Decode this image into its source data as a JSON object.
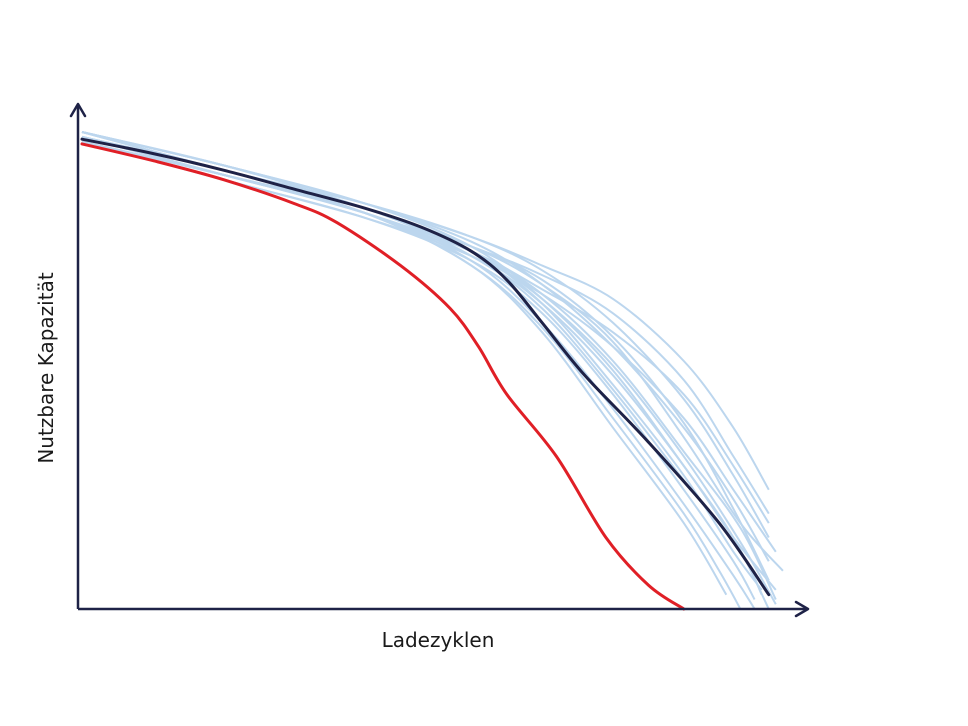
{
  "chart_data": {
    "type": "line",
    "title": "",
    "xlabel": "Ladezyklen",
    "ylabel": "Nutzbare Kapazität",
    "xlim": [
      0,
      100
    ],
    "ylim": [
      0,
      100
    ],
    "grid": false,
    "legend": "none",
    "colors": {
      "axis": "#1e2247",
      "background_series": "#bcd6ee",
      "mean_series": "#1e2247",
      "worst_series": "#e01f26"
    },
    "background_series": [
      [
        [
          0,
          100
        ],
        [
          20,
          93
        ],
        [
          40,
          85
        ],
        [
          55,
          76
        ],
        [
          65,
          65
        ],
        [
          75,
          50
        ],
        [
          85,
          30
        ],
        [
          92,
          15
        ],
        [
          97,
          0
        ]
      ],
      [
        [
          0,
          99
        ],
        [
          20,
          92
        ],
        [
          40,
          84
        ],
        [
          55,
          75
        ],
        [
          65,
          66
        ],
        [
          75,
          52
        ],
        [
          85,
          33
        ],
        [
          93,
          17
        ],
        [
          98,
          2
        ]
      ],
      [
        [
          0,
          99
        ],
        [
          20,
          92
        ],
        [
          40,
          83
        ],
        [
          55,
          72
        ],
        [
          65,
          58
        ],
        [
          75,
          38
        ],
        [
          85,
          18
        ],
        [
          91,
          3
        ]
      ],
      [
        [
          0,
          98
        ],
        [
          20,
          91
        ],
        [
          40,
          83
        ],
        [
          55,
          75
        ],
        [
          65,
          67
        ],
        [
          75,
          58
        ],
        [
          85,
          45
        ],
        [
          92,
          30
        ],
        [
          97,
          18
        ]
      ],
      [
        [
          0,
          99
        ],
        [
          20,
          92
        ],
        [
          40,
          84
        ],
        [
          55,
          76
        ],
        [
          65,
          70
        ],
        [
          75,
          62
        ],
        [
          85,
          48
        ],
        [
          92,
          32
        ],
        [
          97,
          20
        ]
      ],
      [
        [
          0,
          100
        ],
        [
          20,
          93
        ],
        [
          40,
          85
        ],
        [
          55,
          78
        ],
        [
          65,
          72
        ],
        [
          75,
          65
        ],
        [
          85,
          52
        ],
        [
          92,
          38
        ],
        [
          97,
          25
        ]
      ],
      [
        [
          0,
          98
        ],
        [
          20,
          90
        ],
        [
          40,
          82
        ],
        [
          55,
          73
        ],
        [
          65,
          62
        ],
        [
          75,
          45
        ],
        [
          85,
          25
        ],
        [
          92,
          10
        ],
        [
          95,
          2
        ]
      ],
      [
        [
          0,
          100
        ],
        [
          20,
          92
        ],
        [
          40,
          84
        ],
        [
          55,
          74
        ],
        [
          65,
          63
        ],
        [
          75,
          46
        ],
        [
          85,
          27
        ],
        [
          93,
          12
        ],
        [
          96,
          3
        ]
      ],
      [
        [
          0,
          99
        ],
        [
          20,
          91
        ],
        [
          40,
          83
        ],
        [
          55,
          73
        ],
        [
          65,
          60
        ],
        [
          75,
          42
        ],
        [
          85,
          22
        ],
        [
          92,
          7
        ],
        [
          95,
          0
        ]
      ],
      [
        [
          0,
          98
        ],
        [
          20,
          91
        ],
        [
          40,
          83
        ],
        [
          55,
          74
        ],
        [
          65,
          64
        ],
        [
          75,
          49
        ],
        [
          85,
          30
        ],
        [
          92,
          15
        ],
        [
          98,
          4
        ]
      ],
      [
        [
          0,
          100
        ],
        [
          20,
          93
        ],
        [
          40,
          85
        ],
        [
          55,
          77
        ],
        [
          65,
          68
        ],
        [
          75,
          55
        ],
        [
          85,
          38
        ],
        [
          92,
          23
        ],
        [
          97,
          10
        ]
      ],
      [
        [
          0,
          99
        ],
        [
          20,
          92
        ],
        [
          40,
          84
        ],
        [
          55,
          75
        ],
        [
          65,
          65
        ],
        [
          75,
          51
        ],
        [
          85,
          32
        ],
        [
          93,
          14
        ],
        [
          98,
          1
        ]
      ],
      [
        [
          0,
          98
        ],
        [
          20,
          90
        ],
        [
          40,
          82
        ],
        [
          55,
          74
        ],
        [
          65,
          66
        ],
        [
          75,
          55
        ],
        [
          85,
          40
        ],
        [
          92,
          25
        ],
        [
          98,
          12
        ]
      ],
      [
        [
          0,
          99
        ],
        [
          20,
          92
        ],
        [
          40,
          84
        ],
        [
          55,
          76
        ],
        [
          65,
          69
        ],
        [
          75,
          57
        ],
        [
          85,
          39
        ],
        [
          92,
          21
        ],
        [
          97,
          6
        ]
      ],
      [
        [
          0,
          100
        ],
        [
          20,
          93
        ],
        [
          40,
          84
        ],
        [
          55,
          75
        ],
        [
          65,
          64
        ],
        [
          75,
          47
        ],
        [
          85,
          28
        ],
        [
          92,
          12
        ],
        [
          96,
          4
        ]
      ],
      [
        [
          0,
          99
        ],
        [
          20,
          91
        ],
        [
          40,
          83
        ],
        [
          55,
          72
        ],
        [
          65,
          59
        ],
        [
          75,
          40
        ],
        [
          85,
          20
        ],
        [
          90,
          8
        ],
        [
          93,
          0
        ]
      ],
      [
        [
          0,
          98
        ],
        [
          20,
          91
        ],
        [
          40,
          84
        ],
        [
          55,
          76
        ],
        [
          65,
          68
        ],
        [
          75,
          56
        ],
        [
          85,
          36
        ],
        [
          93,
          18
        ],
        [
          99,
          8
        ]
      ],
      [
        [
          0,
          100
        ],
        [
          20,
          92
        ],
        [
          40,
          85
        ],
        [
          55,
          78
        ],
        [
          65,
          71
        ],
        [
          75,
          60
        ],
        [
          85,
          44
        ],
        [
          92,
          28
        ],
        [
          97,
          15
        ]
      ]
    ],
    "series": [
      {
        "values": [
          [
            0,
            98.5
          ],
          [
            10,
            95.5
          ],
          [
            20,
            92
          ],
          [
            30,
            88
          ],
          [
            40,
            84
          ],
          [
            48,
            80
          ],
          [
            55,
            75
          ],
          [
            60,
            69
          ],
          [
            65,
            60
          ],
          [
            71,
            49
          ],
          [
            80,
            35
          ],
          [
            90,
            18
          ],
          [
            97,
            3
          ]
        ]
      },
      {
        "values": [
          [
            0,
            97.5
          ],
          [
            10,
            94
          ],
          [
            20,
            90
          ],
          [
            30,
            85
          ],
          [
            36,
            81
          ],
          [
            45,
            72
          ],
          [
            52,
            63
          ],
          [
            56,
            55
          ],
          [
            60,
            45
          ],
          [
            67,
            32
          ],
          [
            74,
            15
          ],
          [
            80,
            5
          ],
          [
            85,
            0
          ]
        ]
      }
    ]
  }
}
